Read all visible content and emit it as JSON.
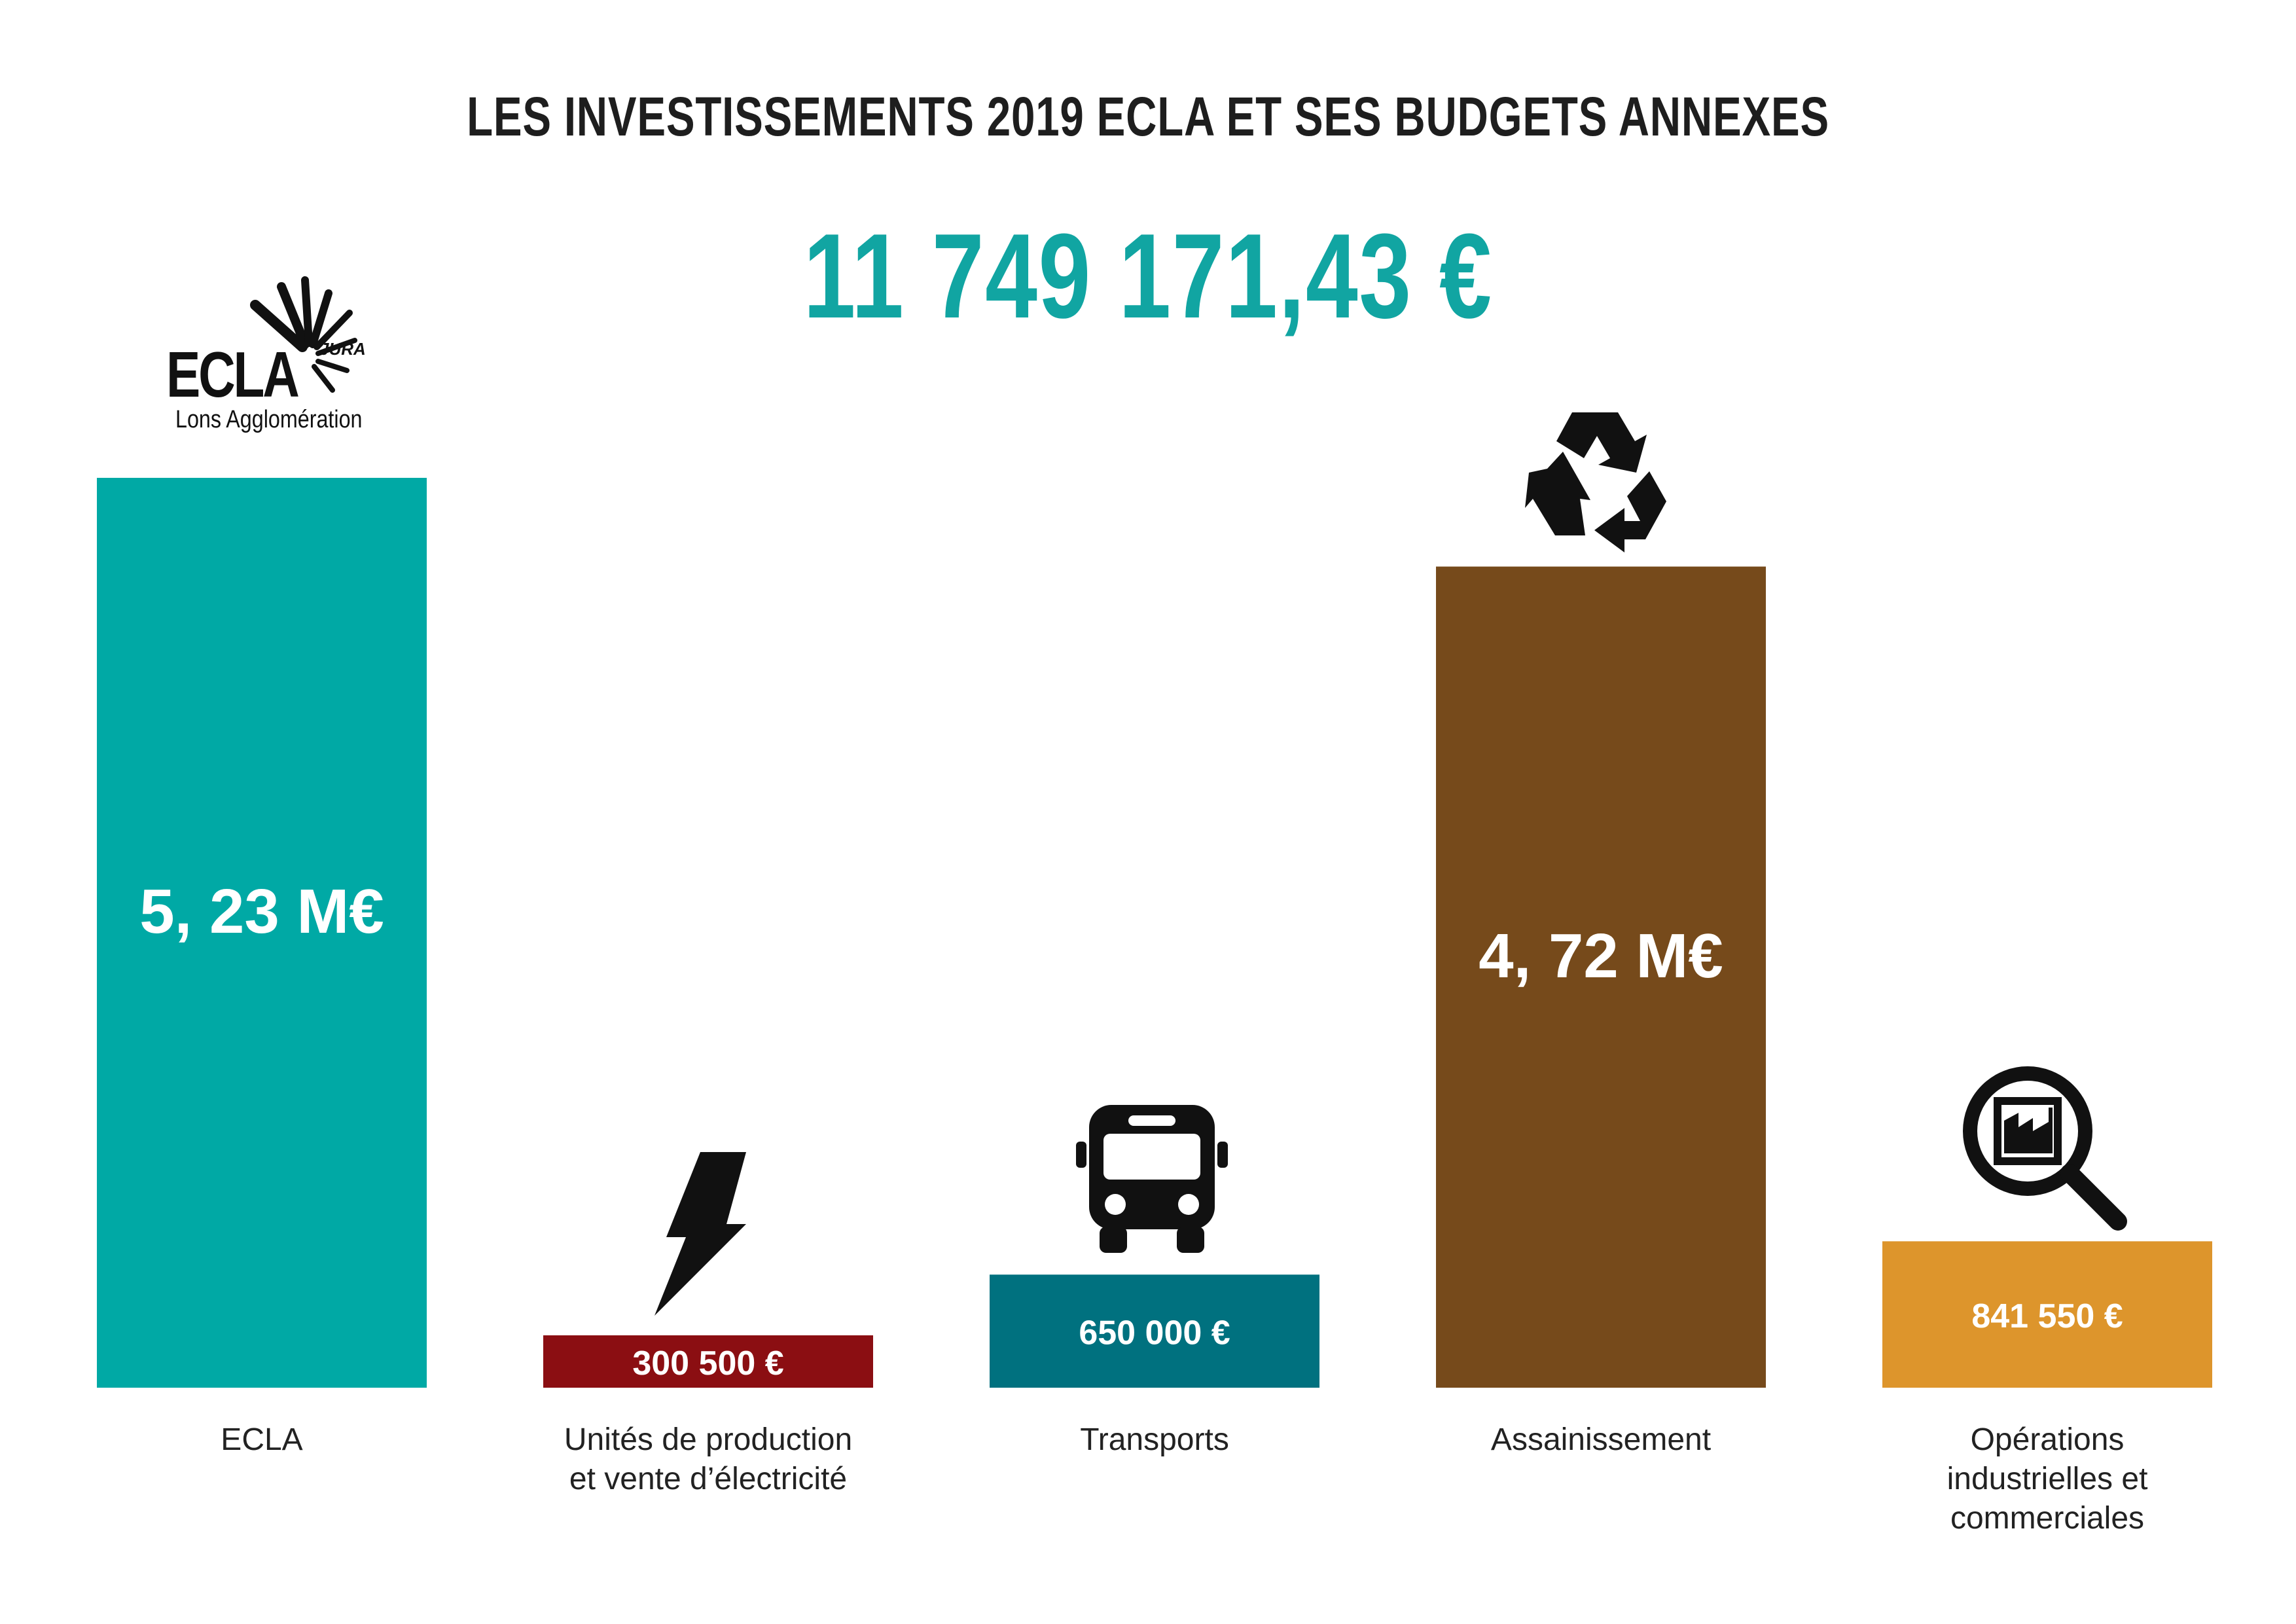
{
  "header": {
    "title": "LES INVESTISSEMENTS 2019 ECLA ET SES BUDGETS ANNEXES",
    "total": "11 749 171,43 €"
  },
  "logo": {
    "word": "ECLA",
    "tag": "JURA",
    "subtitle": "Lons Agglomération"
  },
  "icons": [
    "recycle-icon",
    "lightning-icon",
    "bus-icon",
    "factory-search-icon"
  ],
  "colors": {
    "teal": "#00a9a5",
    "red": "#8b0e12",
    "dark_teal": "#00717f",
    "brown": "#764a1b",
    "orange": "#dd952c",
    "total_text": "#11a5a2"
  },
  "chart_data": {
    "type": "bar",
    "categories": [
      "ECLA",
      "Unités de production et vente d’électricité",
      "Transports",
      "Assainissement",
      "Opérations industrielles et commerciales"
    ],
    "category_lines": [
      [
        "ECLA"
      ],
      [
        "Unités de production",
        "et vente d’électricité"
      ],
      [
        "Transports"
      ],
      [
        "Assainissement"
      ],
      [
        "Opérations",
        "industrielles et",
        "commerciales"
      ]
    ],
    "values": [
      5230000,
      300500,
      650000,
      4720000,
      841550
    ],
    "value_labels": [
      "5, 23 M€",
      "300 500 €",
      "650 000 €",
      "4, 72 M€",
      "841 550 €"
    ],
    "colors": [
      "#00a9a5",
      "#8b0e12",
      "#00717f",
      "#764a1b",
      "#dd952c"
    ],
    "ylim": [
      0,
      5230000
    ],
    "title": "LES INVESTISSEMENTS 2019 ECLA ET SES BUDGETS ANNEXES",
    "xlabel": "",
    "ylabel": "",
    "grid": false
  }
}
